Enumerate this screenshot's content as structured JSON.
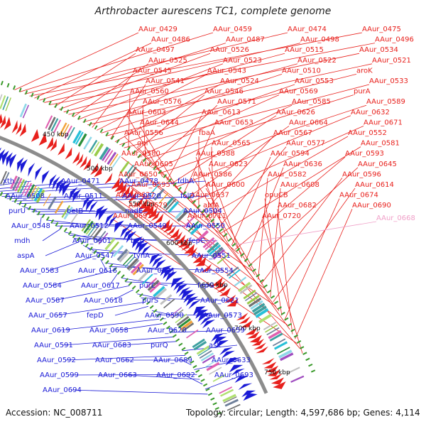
{
  "title": "Arthrobacter aurescens TC1, complete genome",
  "footer": {
    "accession": "Accession: NC_008711",
    "topology": "Topology: circular; Length: 4,597,686 bp; Genes: 4,114"
  },
  "colors": {
    "forward": "#e8201c",
    "reverse": "#1a1ad6",
    "highlight": "#f0a0c8",
    "backbone": "#8c8c8c"
  },
  "ticks": [
    "450 kbp",
    "500 kbp",
    "550 kbp",
    "600 kbp",
    "650 kbp",
    "700 kbp",
    "750 kbp"
  ],
  "labels_forward": [
    "AAur_0429",
    "AAur_0459",
    "AAur_0474",
    "AAur_0475",
    "AAur_0486",
    "AAur_0487",
    "AAur_0498",
    "AAur_0496",
    "AAur_0497",
    "AAur_0526",
    "AAur_0515",
    "AAur_0534",
    "AAur_0525",
    "AAur_0523",
    "AAur_0522",
    "AAur_0521",
    "AAur_0545",
    "AAur_0543",
    "AAur_0510",
    "aroK",
    "AAur_0541",
    "AAur_0524",
    "AAur_0553",
    "AAur_0533",
    "AAur_0560",
    "AAur_0546",
    "AAur_0569",
    "purA",
    "AAur_0576",
    "AAur_0571",
    "AAur_0585",
    "AAur_0589",
    "AAur_0603",
    "AAur_0613",
    "AAur_0626",
    "AAur_0632",
    "AAur_0644",
    "AAur_0653",
    "AAur_0664",
    "AAur_0671",
    "AAur_0556",
    "fbaA",
    "AAur_0567",
    "AAur_0552",
    "gnl",
    "AAur_0565",
    "AAur_0577",
    "AAur_0581",
    "AAur_0580",
    "AAur_0588",
    "AAur_0594",
    "AAur_0593",
    "AAur_0605",
    "AAur_0623",
    "AAur_0636",
    "AAur_0645",
    "AAur_0650",
    "AAur_0586",
    "AAur_0582",
    "AAur_0596",
    "AAur_0595",
    "AAur_0600",
    "AAur_0608",
    "AAur_0614",
    "AAur_0627",
    "AAur_0637",
    "opuCB",
    "AAur_0674",
    "AAur_0679",
    "abfA",
    "AAur_0682",
    "AAur_0690",
    "AAur_0691",
    "AAur_0711",
    "AAur_0720"
  ],
  "labels_highlight": [
    "AAur_0668"
  ],
  "labels_reverse": [
    "xth",
    "AAur_0471",
    "AAur_0478",
    "fdhA",
    "AAur_0508",
    "AAur_0511",
    "AAur_0520",
    "folD",
    "purU",
    "betB",
    "nadE",
    "AAur_0504",
    "AAur_0548",
    "AAur_0512",
    "AAur_0549",
    "AAur_0550",
    "mdh",
    "AAur_0601",
    "betI",
    "fepC",
    "aspA",
    "AAur_0547",
    "tynA",
    "AAur_0551",
    "AAur_0583",
    "AAur_0616",
    "AAur_0641",
    "AAur_0554",
    "AAur_0584",
    "AAur_0617",
    "purL",
    "fepG",
    "AAur_0587",
    "AAur_0618",
    "purS",
    "AAur_0621",
    "AAur_0657",
    "fepD",
    "AAur_0590",
    "AAur_0573",
    "AAur_0619",
    "AAur_0658",
    "AAur_0620",
    "AAur_0659",
    "AAur_0591",
    "AAur_0683",
    "purQ",
    "ask",
    "AAur_0592",
    "AAur_0662",
    "AAur_0689",
    "AAur_0633",
    "AAur_0599",
    "AAur_0663",
    "AAur_0692",
    "AAur_0693",
    "AAur_0694"
  ]
}
